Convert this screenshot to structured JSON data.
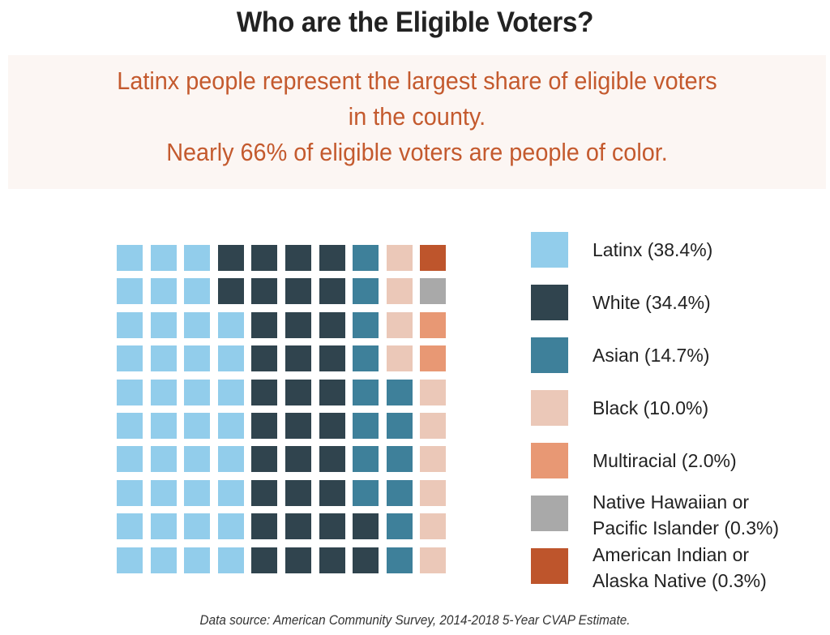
{
  "title": "Who are the Eligible Voters?",
  "callout": {
    "line1": "Latinx people represent the largest share of eligible voters",
    "line2": "in the county.",
    "line3": "Nearly 66% of eligible voters are people of color.",
    "background_color": "#FCF6F3",
    "text_color": "#C45A2E"
  },
  "source": "Data source: American Community Survey, 2014-2018 5-Year CVAP Estimate.",
  "chart_data": {
    "type": "waffle",
    "title": "Who are the Eligible Voters?",
    "rows": 10,
    "columns": 10,
    "unit": "1 square = 1% of eligible voters",
    "legend_position": "right",
    "categories": [
      {
        "key": "L",
        "label": "Latinx (38.4%)",
        "label_lines": [
          "Latinx (38.4%)"
        ],
        "percent": 38.4,
        "squares": 38,
        "color": "#92CDEB"
      },
      {
        "key": "W",
        "label": "White (34.4%)",
        "label_lines": [
          "White (34.4%)"
        ],
        "percent": 34.4,
        "squares": 34,
        "color": "#30444E"
      },
      {
        "key": "A",
        "label": "Asian (14.7%)",
        "label_lines": [
          "Asian (14.7%)"
        ],
        "percent": 14.7,
        "squares": 14,
        "color": "#3E809A"
      },
      {
        "key": "B",
        "label": "Black (10.0%)",
        "label_lines": [
          "Black (10.0%)"
        ],
        "percent": 10.0,
        "squares": 10,
        "color": "#EBC8B8"
      },
      {
        "key": "M",
        "label": "Multiracial (2.0%)",
        "label_lines": [
          "Multiracial (2.0%)"
        ],
        "percent": 2.0,
        "squares": 2,
        "color": "#E89874"
      },
      {
        "key": "N",
        "label": "Native Hawaiian or Pacific Islander (0.3%)",
        "label_lines": [
          "Native Hawaiian or",
          "Pacific Islander (0.3%)"
        ],
        "percent": 0.3,
        "squares": 1,
        "color": "#A9A9A9"
      },
      {
        "key": "I",
        "label": "American Indian or Alaska Native (0.3%)",
        "label_lines": [
          "American Indian or",
          "Alaska Native (0.3%)"
        ],
        "percent": 0.3,
        "squares": 1,
        "color": "#BE552C"
      }
    ],
    "grid": [
      [
        "L",
        "L",
        "L",
        "W",
        "W",
        "W",
        "W",
        "A",
        "B",
        "I"
      ],
      [
        "L",
        "L",
        "L",
        "W",
        "W",
        "W",
        "W",
        "A",
        "B",
        "N"
      ],
      [
        "L",
        "L",
        "L",
        "L",
        "W",
        "W",
        "W",
        "A",
        "B",
        "M"
      ],
      [
        "L",
        "L",
        "L",
        "L",
        "W",
        "W",
        "W",
        "A",
        "B",
        "M"
      ],
      [
        "L",
        "L",
        "L",
        "L",
        "W",
        "W",
        "W",
        "A",
        "A",
        "B"
      ],
      [
        "L",
        "L",
        "L",
        "L",
        "W",
        "W",
        "W",
        "A",
        "A",
        "B"
      ],
      [
        "L",
        "L",
        "L",
        "L",
        "W",
        "W",
        "W",
        "A",
        "A",
        "B"
      ],
      [
        "L",
        "L",
        "L",
        "L",
        "W",
        "W",
        "W",
        "A",
        "A",
        "B"
      ],
      [
        "L",
        "L",
        "L",
        "L",
        "W",
        "W",
        "W",
        "W",
        "A",
        "B"
      ],
      [
        "L",
        "L",
        "L",
        "L",
        "W",
        "W",
        "W",
        "W",
        "A",
        "B"
      ]
    ]
  }
}
